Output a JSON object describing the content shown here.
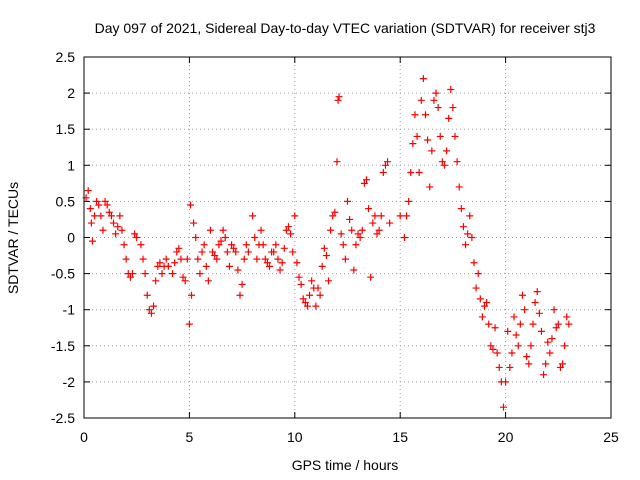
{
  "chart_data": {
    "type": "scatter",
    "title": "Day 097 of 2021, Sidereal Day-to-day VTEC variation (SDTVAR) for receiver stj3",
    "xlabel": "GPS time / hours",
    "ylabel": "SDTVAR / TECUs",
    "xlim": [
      0,
      25
    ],
    "ylim": [
      -2.5,
      2.5
    ],
    "xticks": [
      "0",
      "5",
      "10",
      "15",
      "20",
      "25"
    ],
    "yticks": [
      "-2.5",
      "-2",
      "-1.5",
      "-1",
      "-0.5",
      "0",
      "0.5",
      "1",
      "1.5",
      "2",
      "2.5"
    ],
    "grid": true,
    "marker": "+",
    "series": [
      {
        "name": "stj3",
        "color": "#ff0000",
        "points": [
          [
            0.1,
            0.55
          ],
          [
            0.2,
            0.65
          ],
          [
            0.3,
            0.4
          ],
          [
            0.35,
            0.2
          ],
          [
            0.4,
            -0.05
          ],
          [
            0.5,
            0.3
          ],
          [
            0.6,
            0.5
          ],
          [
            0.7,
            0.45
          ],
          [
            0.8,
            0.3
          ],
          [
            0.9,
            0.1
          ],
          [
            1.0,
            0.5
          ],
          [
            1.1,
            0.45
          ],
          [
            1.2,
            0.35
          ],
          [
            1.3,
            0.3
          ],
          [
            1.4,
            0.2
          ],
          [
            1.5,
            0.05
          ],
          [
            1.6,
            0.15
          ],
          [
            1.7,
            0.3
          ],
          [
            1.8,
            0.1
          ],
          [
            1.9,
            -0.1
          ],
          [
            2.0,
            -0.3
          ],
          [
            2.1,
            -0.5
          ],
          [
            2.2,
            -0.55
          ],
          [
            2.3,
            -0.5
          ],
          [
            2.4,
            0.05
          ],
          [
            2.5,
            0.0
          ],
          [
            2.7,
            -0.1
          ],
          [
            2.8,
            -0.3
          ],
          [
            2.9,
            -0.5
          ],
          [
            3.0,
            -0.8
          ],
          [
            3.1,
            -1.0
          ],
          [
            3.2,
            -1.05
          ],
          [
            3.3,
            -0.95
          ],
          [
            3.4,
            -0.6
          ],
          [
            3.5,
            -0.4
          ],
          [
            3.6,
            -0.35
          ],
          [
            3.7,
            -0.5
          ],
          [
            3.8,
            -0.4
          ],
          [
            3.9,
            -0.3
          ],
          [
            4.0,
            -0.4
          ],
          [
            4.2,
            -0.5
          ],
          [
            4.3,
            -0.35
          ],
          [
            4.4,
            -0.2
          ],
          [
            4.5,
            -0.15
          ],
          [
            4.6,
            -0.3
          ],
          [
            4.7,
            -0.55
          ],
          [
            4.8,
            -0.6
          ],
          [
            4.9,
            -0.3
          ],
          [
            5.0,
            -1.2
          ],
          [
            5.05,
            0.45
          ],
          [
            5.1,
            -0.8
          ],
          [
            5.2,
            0.2
          ],
          [
            5.3,
            0.0
          ],
          [
            5.4,
            -0.3
          ],
          [
            5.5,
            -0.5
          ],
          [
            5.6,
            -0.2
          ],
          [
            5.7,
            -0.1
          ],
          [
            5.8,
            -0.4
          ],
          [
            5.9,
            -0.6
          ],
          [
            6.0,
            0.1
          ],
          [
            6.1,
            -0.2
          ],
          [
            6.2,
            -0.25
          ],
          [
            6.3,
            -0.3
          ],
          [
            6.4,
            -0.1
          ],
          [
            6.5,
            -0.05
          ],
          [
            6.6,
            0.1
          ],
          [
            6.7,
            0.0
          ],
          [
            6.8,
            -0.2
          ],
          [
            6.9,
            -0.4
          ],
          [
            7.0,
            -0.1
          ],
          [
            7.1,
            -0.15
          ],
          [
            7.2,
            -0.2
          ],
          [
            7.3,
            -0.45
          ],
          [
            7.4,
            -0.8
          ],
          [
            7.5,
            -0.65
          ],
          [
            7.6,
            -0.3
          ],
          [
            7.7,
            -0.1
          ],
          [
            7.8,
            -0.2
          ],
          [
            8.0,
            0.3
          ],
          [
            8.1,
            0.0
          ],
          [
            8.2,
            -0.3
          ],
          [
            8.3,
            -0.1
          ],
          [
            8.4,
            0.1
          ],
          [
            8.5,
            -0.1
          ],
          [
            8.6,
            -0.3
          ],
          [
            8.7,
            -0.35
          ],
          [
            8.8,
            -0.4
          ],
          [
            8.9,
            -0.2
          ],
          [
            9.0,
            -0.2
          ],
          [
            9.1,
            -0.1
          ],
          [
            9.2,
            -0.3
          ],
          [
            9.3,
            -0.45
          ],
          [
            9.4,
            -0.35
          ],
          [
            9.5,
            -0.15
          ],
          [
            9.6,
            0.1
          ],
          [
            9.7,
            0.15
          ],
          [
            9.8,
            0.05
          ],
          [
            9.9,
            -0.2
          ],
          [
            10.0,
            0.3
          ],
          [
            10.1,
            -0.35
          ],
          [
            10.2,
            -0.55
          ],
          [
            10.3,
            -0.65
          ],
          [
            10.4,
            -0.85
          ],
          [
            10.5,
            -0.9
          ],
          [
            10.6,
            -0.95
          ],
          [
            10.7,
            -0.8
          ],
          [
            10.8,
            -0.6
          ],
          [
            10.9,
            -0.7
          ],
          [
            11.0,
            -0.95
          ],
          [
            11.1,
            -0.7
          ],
          [
            11.2,
            -0.8
          ],
          [
            11.3,
            -0.4
          ],
          [
            11.4,
            -0.15
          ],
          [
            11.5,
            -0.25
          ],
          [
            11.6,
            -0.6
          ],
          [
            11.7,
            0.1
          ],
          [
            11.8,
            0.3
          ],
          [
            11.9,
            0.35
          ],
          [
            12.0,
            1.05
          ],
          [
            12.05,
            1.9
          ],
          [
            12.1,
            1.95
          ],
          [
            12.2,
            0.05
          ],
          [
            12.3,
            -0.1
          ],
          [
            12.4,
            -0.3
          ],
          [
            12.5,
            0.5
          ],
          [
            12.6,
            0.25
          ],
          [
            12.7,
            0.1
          ],
          [
            12.8,
            -0.45
          ],
          [
            12.9,
            -0.1
          ],
          [
            13.0,
            0.05
          ],
          [
            13.1,
            0.0
          ],
          [
            13.2,
            0.1
          ],
          [
            13.3,
            0.75
          ],
          [
            13.4,
            0.8
          ],
          [
            13.5,
            0.4
          ],
          [
            13.6,
            -0.55
          ],
          [
            13.7,
            0.2
          ],
          [
            13.8,
            0.3
          ],
          [
            13.9,
            0.05
          ],
          [
            14.0,
            0.1
          ],
          [
            14.1,
            0.3
          ],
          [
            14.2,
            0.9
          ],
          [
            14.3,
            1.0
          ],
          [
            14.4,
            1.05
          ],
          [
            14.5,
            0.2
          ],
          [
            15.0,
            0.3
          ],
          [
            15.2,
            0.0
          ],
          [
            15.3,
            0.3
          ],
          [
            15.4,
            0.5
          ],
          [
            15.5,
            0.9
          ],
          [
            15.6,
            1.3
          ],
          [
            15.7,
            1.7
          ],
          [
            15.8,
            1.4
          ],
          [
            15.9,
            0.9
          ],
          [
            16.0,
            1.9
          ],
          [
            16.1,
            2.2
          ],
          [
            16.2,
            1.7
          ],
          [
            16.3,
            1.35
          ],
          [
            16.4,
            0.7
          ],
          [
            16.5,
            1.2
          ],
          [
            16.6,
            1.9
          ],
          [
            16.7,
            2.0
          ],
          [
            16.8,
            1.8
          ],
          [
            16.9,
            1.4
          ],
          [
            17.0,
            1.05
          ],
          [
            17.1,
            1.0
          ],
          [
            17.2,
            1.2
          ],
          [
            17.3,
            1.65
          ],
          [
            17.4,
            2.05
          ],
          [
            17.5,
            1.8
          ],
          [
            17.6,
            1.4
          ],
          [
            17.7,
            1.05
          ],
          [
            17.8,
            0.7
          ],
          [
            17.9,
            0.4
          ],
          [
            18.0,
            0.15
          ],
          [
            18.1,
            -0.1
          ],
          [
            18.2,
            0.05
          ],
          [
            18.3,
            0.3
          ],
          [
            18.4,
            0.0
          ],
          [
            18.5,
            -0.35
          ],
          [
            18.6,
            -0.7
          ],
          [
            18.7,
            -0.5
          ],
          [
            18.8,
            -0.85
          ],
          [
            18.9,
            -1.1
          ],
          [
            19.0,
            -0.95
          ],
          [
            19.1,
            -0.9
          ],
          [
            19.2,
            -1.2
          ],
          [
            19.3,
            -1.5
          ],
          [
            19.4,
            -1.55
          ],
          [
            19.5,
            -1.25
          ],
          [
            19.6,
            -1.6
          ],
          [
            19.7,
            -1.8
          ],
          [
            19.8,
            -2.0
          ],
          [
            19.9,
            -2.35
          ],
          [
            20.0,
            -2.0
          ],
          [
            20.1,
            -1.3
          ],
          [
            20.2,
            -1.8
          ],
          [
            20.3,
            -1.6
          ],
          [
            20.4,
            -1.1
          ],
          [
            20.5,
            -1.35
          ],
          [
            20.6,
            -1.5
          ],
          [
            20.7,
            -1.2
          ],
          [
            20.8,
            -0.8
          ],
          [
            20.9,
            -1.0
          ],
          [
            21.0,
            -1.65
          ],
          [
            21.1,
            -1.75
          ],
          [
            21.2,
            -1.5
          ],
          [
            21.3,
            -1.2
          ],
          [
            21.4,
            -0.9
          ],
          [
            21.5,
            -0.75
          ],
          [
            21.6,
            -1.05
          ],
          [
            21.7,
            -1.3
          ],
          [
            21.8,
            -1.9
          ],
          [
            21.9,
            -1.75
          ],
          [
            22.0,
            -1.45
          ],
          [
            22.1,
            -1.6
          ],
          [
            22.2,
            -1.4
          ],
          [
            22.3,
            -1.0
          ],
          [
            22.4,
            -1.25
          ],
          [
            22.5,
            -1.2
          ],
          [
            22.6,
            -1.8
          ],
          [
            22.7,
            -1.75
          ],
          [
            22.8,
            -1.5
          ],
          [
            22.9,
            -1.1
          ],
          [
            23.0,
            -1.2
          ]
        ]
      }
    ]
  }
}
